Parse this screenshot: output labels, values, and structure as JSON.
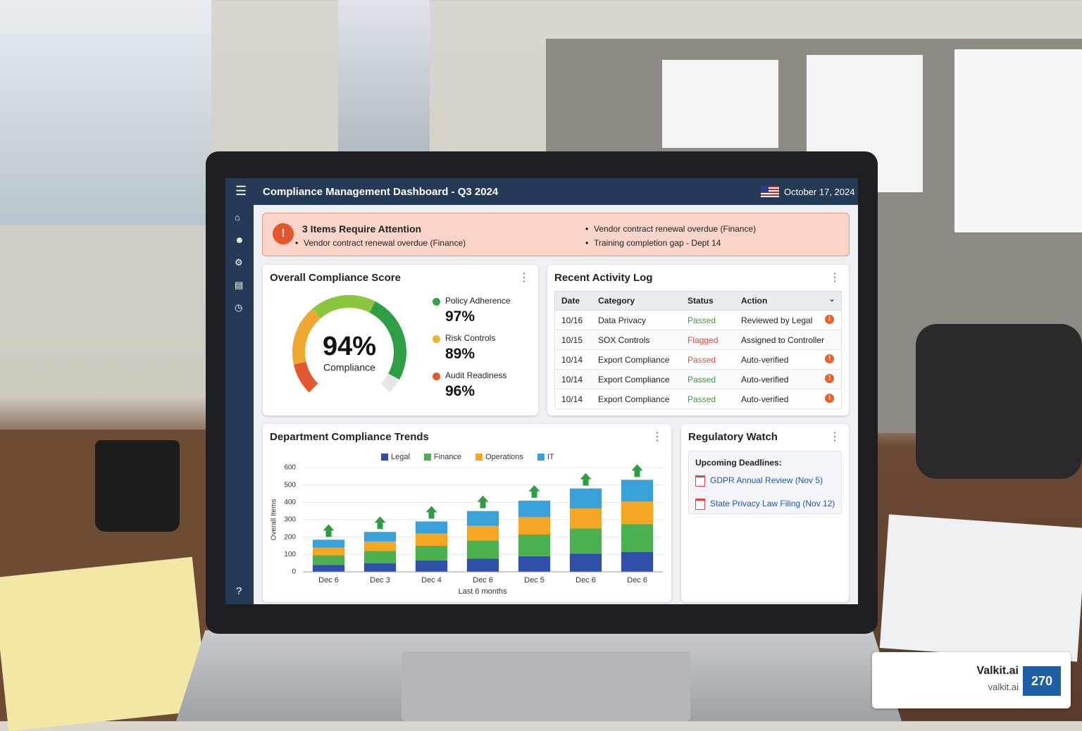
{
  "header": {
    "title": "Compliance Management Dashboard - Q3 2024",
    "date": "October 17, 2024"
  },
  "alert": {
    "title": "3 Items Require Attention",
    "items": [
      "Vendor contract renewal overdue (Finance)",
      "Vendor contract renewal overdue (Finance)",
      "Training completion gap - Dept 14"
    ]
  },
  "score_card": {
    "title": "Overall Compliance Score",
    "score": {
      "value": 94,
      "label": "94%"
    },
    "score_caption": "Compliance",
    "metrics": [
      {
        "name": "Policy Adherence",
        "value": 97,
        "label": "97%",
        "color": "#3aa04a"
      },
      {
        "name": "Risk Controls",
        "value": 89,
        "label": "89%",
        "color": "#f0b429"
      },
      {
        "name": "Audit Readiness",
        "value": 96,
        "label": "96%",
        "color": "#e4572e"
      }
    ]
  },
  "activity_log": {
    "title": "Recent Activity Log",
    "columns": [
      "Date",
      "Category",
      "Status",
      "Action"
    ],
    "rows": [
      {
        "cells": [
          "10/16",
          "Data Privacy",
          "Passed",
          "Reviewed by Legal"
        ],
        "status_color": "#3a9a3a",
        "flag": true
      },
      {
        "cells": [
          "10/15",
          "SOX Controls",
          "Flagged",
          "Assigned to Controller"
        ],
        "status_color": "#e04a3a",
        "flag": false
      },
      {
        "cells": [
          "10/14",
          "Export Compliance",
          "Passed",
          "Auto-verified"
        ],
        "status_color": "#e04a3a",
        "flag": true
      },
      {
        "cells": [
          "10/14",
          "Export Compliance",
          "Passed",
          "Auto-verified"
        ],
        "status_color": "#3a9a3a",
        "flag": true
      },
      {
        "cells": [
          "10/14",
          "Export Compliance",
          "Passed",
          "Auto-verified"
        ],
        "status_color": "#3a9a3a",
        "flag": true
      }
    ]
  },
  "trends": {
    "type": "bar",
    "stacked": true,
    "title": "Department Compliance Trends",
    "y_label": "Overall Items",
    "x_label": "Last 6 months",
    "categories": [
      "Dec 6",
      "Dec 3",
      "Dec 4",
      "Dec 6",
      "Dec 5",
      "Dec 6",
      "Dec 6"
    ],
    "series": [
      {
        "name": "Legal",
        "color": "#2f4fa8",
        "values": [
          40,
          50,
          65,
          75,
          90,
          105,
          115
        ]
      },
      {
        "name": "Finance",
        "color": "#4caf50",
        "values": [
          55,
          70,
          85,
          105,
          125,
          145,
          160
        ]
      },
      {
        "name": "Operations",
        "color": "#f5a623",
        "values": [
          45,
          55,
          70,
          85,
          100,
          115,
          130
        ]
      },
      {
        "name": "IT",
        "color": "#3aa0d8",
        "values": [
          45,
          55,
          70,
          85,
          95,
          115,
          125
        ]
      }
    ],
    "ylim": [
      0,
      600
    ],
    "yticks": [
      0,
      100,
      200,
      300,
      400,
      500,
      600
    ]
  },
  "regulatory_watch": {
    "title": "Regulatory Watch",
    "subtitle": "Upcoming Deadlines:",
    "items": [
      "GDPR Annual Review (Nov 5)",
      "State Privacy Law Filing (Nov 12)"
    ]
  },
  "watermark": {
    "name": "Valkit.ai",
    "url": "valkit.ai",
    "logo_text": "270"
  }
}
